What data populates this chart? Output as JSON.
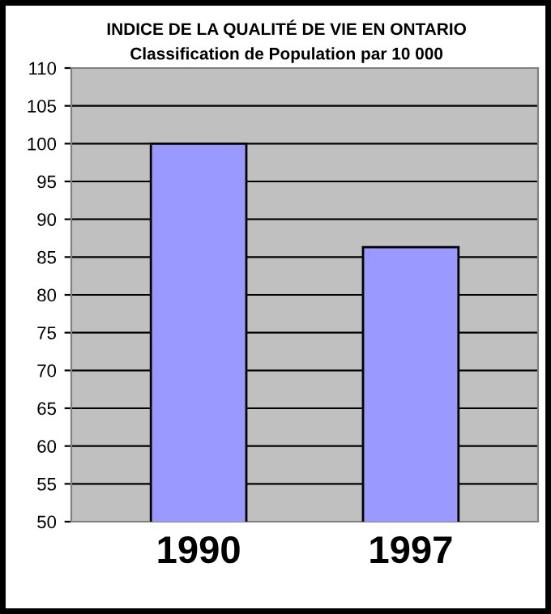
{
  "chart_data": {
    "type": "bar",
    "title": "INDICE DE LA QUALITÉ DE VIE EN ONTARIO",
    "subtitle": "Classification de Population par 10 000",
    "categories": [
      "1990",
      "1997"
    ],
    "values": [
      100,
      86.3
    ],
    "color": "#9999ff",
    "ylim": [
      50,
      110
    ],
    "yticks": [
      50,
      55,
      60,
      65,
      70,
      75,
      80,
      85,
      90,
      95,
      100,
      105,
      110
    ],
    "grid": "y"
  }
}
